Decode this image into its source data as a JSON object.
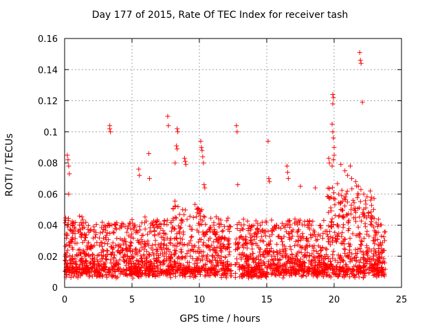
{
  "chart_data": {
    "type": "scatter",
    "title": "Day 177 of 2015, Rate Of TEC Index for receiver tash",
    "xlabel": "GPS time / hours",
    "ylabel": "ROTI / TECUs",
    "xlim": [
      0,
      25
    ],
    "ylim": [
      0,
      0.16
    ],
    "xticks": [
      0,
      5,
      10,
      15,
      20,
      25
    ],
    "yticks": [
      0,
      0.02,
      0.04,
      0.06,
      0.08,
      0.1,
      0.12,
      0.14,
      0.16
    ],
    "xtick_labels": [
      "0",
      "5",
      "10",
      "15",
      "20",
      "25"
    ],
    "ytick_labels": [
      "0",
      "0.02",
      "0.04",
      "0.06",
      "0.08",
      "0.1",
      "0.12",
      "0.14",
      "0.16"
    ],
    "grid": true,
    "marker": "+",
    "color": "#ff0000",
    "data_gap_hours": [
      12.4,
      12.65
    ],
    "series": [
      {
        "name": "ROTI",
        "points": [
          [
            0.2,
            0.085
          ],
          [
            0.25,
            0.082
          ],
          [
            0.3,
            0.078
          ],
          [
            0.35,
            0.073
          ],
          [
            0.3,
            0.06
          ],
          [
            3.35,
            0.104
          ],
          [
            3.35,
            0.102
          ],
          [
            3.4,
            0.1
          ],
          [
            6.25,
            0.086
          ],
          [
            6.3,
            0.07
          ],
          [
            5.5,
            0.076
          ],
          [
            5.55,
            0.072
          ],
          [
            7.65,
            0.11
          ],
          [
            7.7,
            0.104
          ],
          [
            8.35,
            0.102
          ],
          [
            8.4,
            0.1
          ],
          [
            8.3,
            0.091
          ],
          [
            8.35,
            0.089
          ],
          [
            8.2,
            0.08
          ],
          [
            8.9,
            0.083
          ],
          [
            8.95,
            0.081
          ],
          [
            9.0,
            0.079
          ],
          [
            10.1,
            0.094
          ],
          [
            10.15,
            0.09
          ],
          [
            10.2,
            0.088
          ],
          [
            10.25,
            0.084
          ],
          [
            10.3,
            0.08
          ],
          [
            10.35,
            0.066
          ],
          [
            10.4,
            0.064
          ],
          [
            12.75,
            0.104
          ],
          [
            12.8,
            0.1
          ],
          [
            12.85,
            0.066
          ],
          [
            15.1,
            0.094
          ],
          [
            15.15,
            0.07
          ],
          [
            15.2,
            0.068
          ],
          [
            16.5,
            0.078
          ],
          [
            16.55,
            0.074
          ],
          [
            16.6,
            0.07
          ],
          [
            17.5,
            0.065
          ],
          [
            18.6,
            0.064
          ],
          [
            19.6,
            0.083
          ],
          [
            19.65,
            0.08
          ],
          [
            19.9,
            0.124
          ],
          [
            19.95,
            0.122
          ],
          [
            19.9,
            0.118
          ],
          [
            19.85,
            0.105
          ],
          [
            19.9,
            0.1
          ],
          [
            19.95,
            0.096
          ],
          [
            20.0,
            0.09
          ],
          [
            20.0,
            0.085
          ],
          [
            19.95,
            0.082
          ],
          [
            19.85,
            0.078
          ],
          [
            20.5,
            0.079
          ],
          [
            20.8,
            0.075
          ],
          [
            21.0,
            0.072
          ],
          [
            21.2,
            0.078
          ],
          [
            21.3,
            0.07
          ],
          [
            21.9,
            0.151
          ],
          [
            21.95,
            0.146
          ],
          [
            22.0,
            0.144
          ],
          [
            22.1,
            0.119
          ],
          [
            21.6,
            0.068
          ],
          [
            21.8,
            0.065
          ],
          [
            22.2,
            0.06
          ],
          [
            22.7,
            0.045
          ],
          [
            22.8,
            0.04
          ],
          [
            22.9,
            0.03
          ],
          [
            22.9,
            0.02
          ],
          [
            22.9,
            0.01
          ]
        ]
      }
    ]
  }
}
